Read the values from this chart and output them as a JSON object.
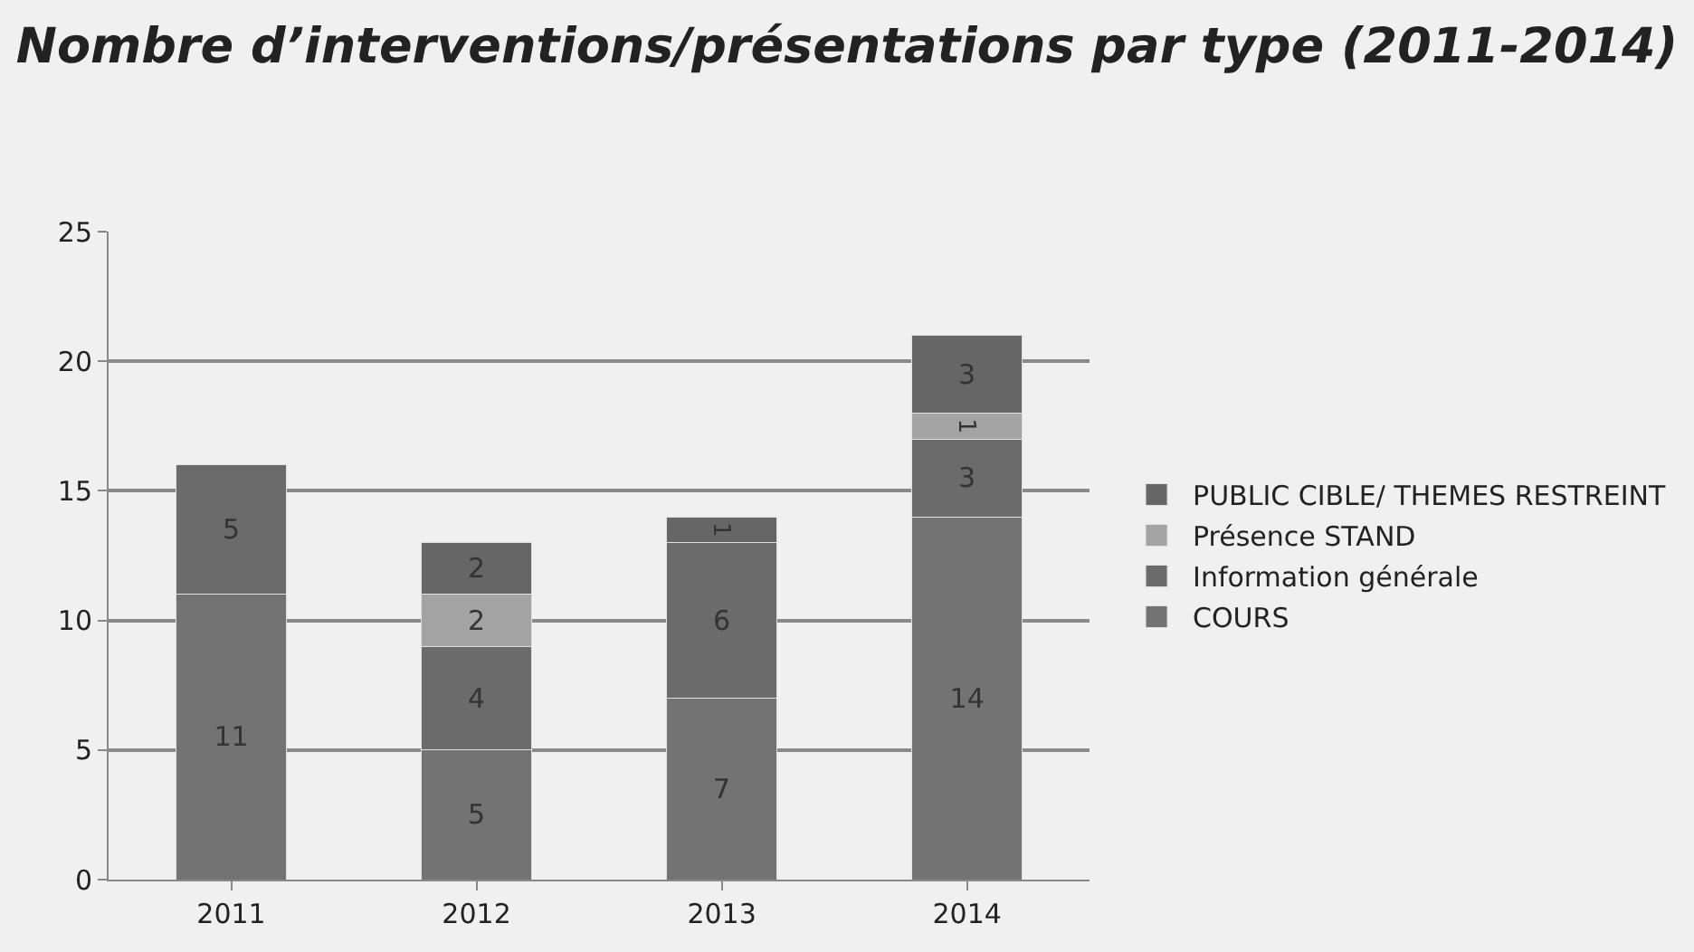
{
  "chart_data": {
    "type": "bar",
    "title": "Nombre d’interventions/présentations par type (2011-2014)",
    "categories": [
      "2011",
      "2012",
      "2013",
      "2014"
    ],
    "stacked": true,
    "series": [
      {
        "name": "COURS",
        "color": "#737373",
        "values": [
          11,
          5,
          7,
          14
        ]
      },
      {
        "name": "Information générale",
        "color": "#6b6b6b",
        "values": [
          5,
          4,
          6,
          3
        ]
      },
      {
        "name": "Présence STAND",
        "color": "#a3a3a3",
        "values": [
          null,
          2,
          null,
          1
        ]
      },
      {
        "name": "PUBLIC CIBLE/ THEMES RESTREINT",
        "color": "#666666",
        "values": [
          null,
          2,
          1,
          3
        ]
      }
    ],
    "ylim": [
      0,
      25
    ],
    "yticks": [
      0,
      5,
      10,
      15,
      20,
      25
    ],
    "grid": "y",
    "legend": "right",
    "data_labels": true
  }
}
